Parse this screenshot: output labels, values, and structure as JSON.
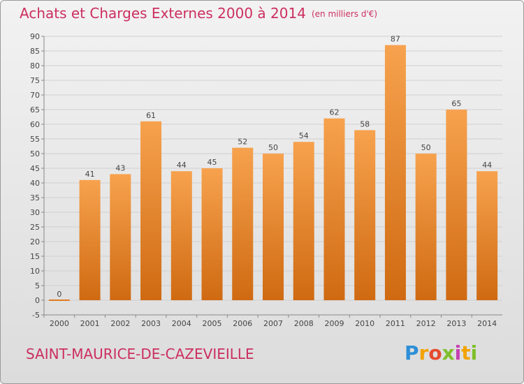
{
  "chart_data": {
    "type": "bar",
    "title": "Achats et Charges Externes 2000 à 2014",
    "subtitle": "(en milliers d'€)",
    "categories": [
      "2000",
      "2001",
      "2002",
      "2003",
      "2004",
      "2005",
      "2006",
      "2007",
      "2008",
      "2009",
      "2010",
      "2011",
      "2012",
      "2013",
      "2014"
    ],
    "values": [
      0,
      41,
      43,
      61,
      44,
      45,
      52,
      50,
      54,
      62,
      58,
      87,
      50,
      65,
      44
    ],
    "ylim": [
      -5,
      90
    ],
    "yticks": [
      -5,
      0,
      5,
      10,
      15,
      20,
      25,
      30,
      35,
      40,
      45,
      50,
      55,
      60,
      65,
      70,
      75,
      80,
      85,
      90
    ],
    "grid": true,
    "bar_color_top": "#f7a24e",
    "bar_color_bottom": "#cf6a12"
  },
  "footer": {
    "place": "SAINT-MAURICE-DE-CAZEVIEILLE",
    "logo": [
      "P",
      "r",
      "o",
      "x",
      "i",
      "t",
      "i"
    ]
  },
  "colors": {
    "title": "#cc2f60",
    "accent": "#cc2f60"
  }
}
